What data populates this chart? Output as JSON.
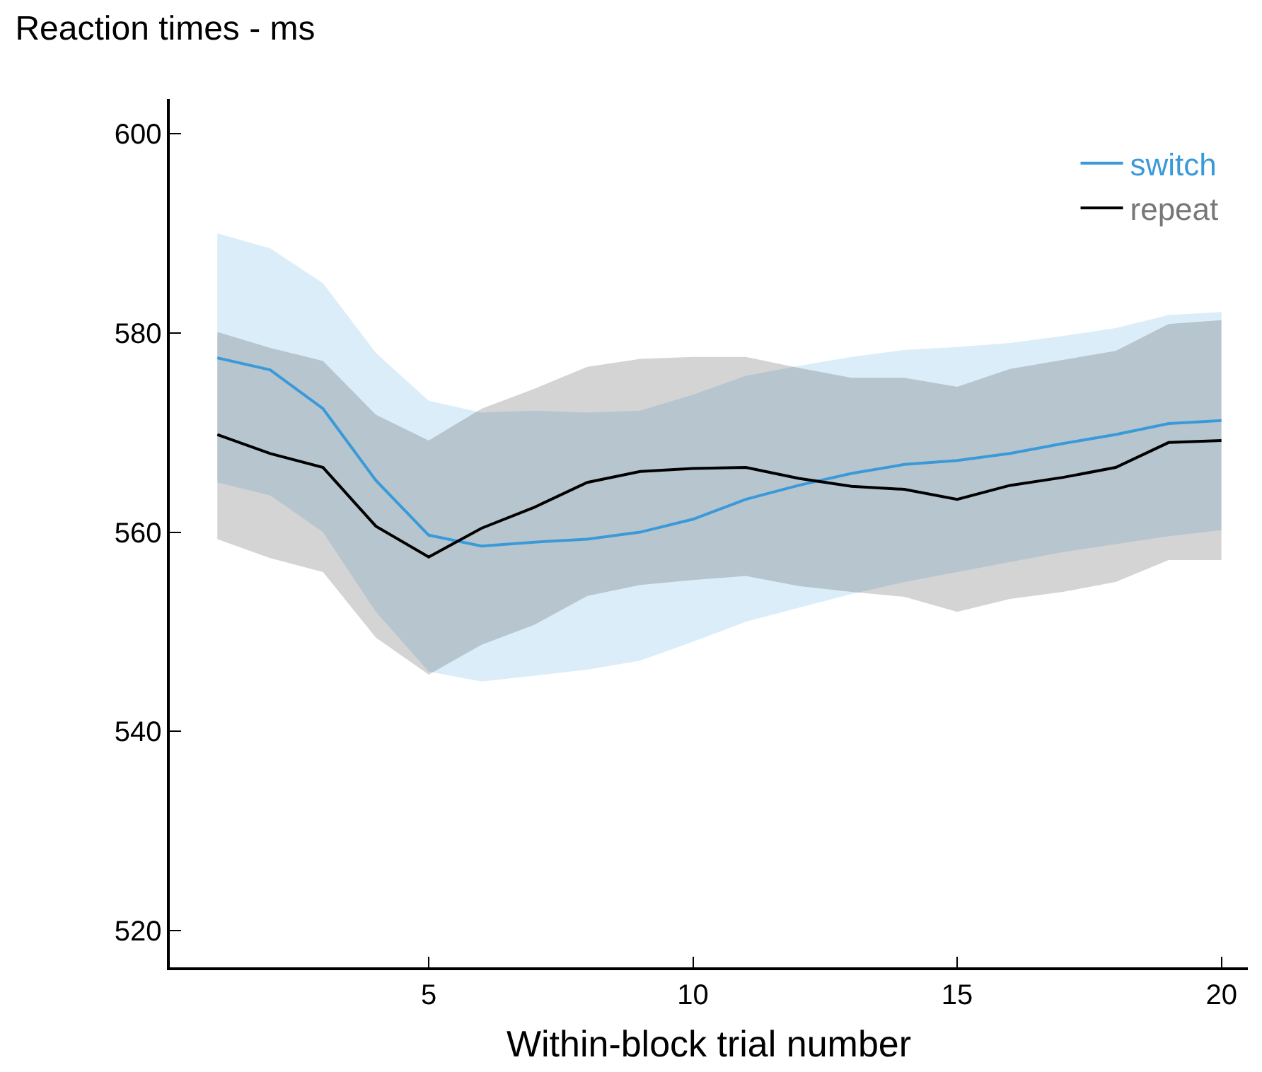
{
  "chart_data": {
    "type": "line",
    "title": "Reaction times - ms",
    "xlabel": "Within-block trial number",
    "x": [
      1,
      2,
      3,
      4,
      5,
      6,
      7,
      8,
      9,
      10,
      11,
      12,
      13,
      14,
      15,
      16,
      17,
      18,
      19,
      20
    ],
    "series": [
      {
        "name": "switch",
        "color": "#3a9ad9",
        "values": [
          577.5,
          576.3,
          572.4,
          565.2,
          559.7,
          558.6,
          559.0,
          559.3,
          560.0,
          561.3,
          563.3,
          564.7,
          565.9,
          566.8,
          567.2,
          567.9,
          568.9,
          569.8,
          570.9,
          571.2
        ],
        "lower": [
          565.0,
          563.7,
          560.0,
          552.0,
          546.0,
          545.0,
          545.6,
          546.2,
          547.1,
          549.0,
          551.0,
          552.4,
          553.8,
          555.0,
          556.0,
          557.0,
          558.0,
          558.8,
          559.6,
          560.2
        ],
        "upper": [
          590.0,
          588.5,
          585.0,
          578.0,
          573.2,
          572.0,
          572.2,
          572.0,
          572.2,
          573.8,
          575.7,
          576.7,
          577.6,
          578.3,
          578.6,
          579.0,
          579.7,
          580.5,
          581.8,
          582.1
        ]
      },
      {
        "name": "repeat",
        "color": "#000000",
        "values": [
          569.8,
          567.9,
          566.5,
          560.6,
          557.5,
          560.4,
          562.5,
          565.0,
          566.1,
          566.4,
          566.5,
          565.4,
          564.6,
          564.3,
          563.3,
          564.7,
          565.5,
          566.5,
          569.0,
          569.2
        ],
        "lower": [
          559.3,
          557.4,
          556.0,
          549.4,
          545.7,
          548.7,
          550.7,
          553.6,
          554.7,
          555.2,
          555.6,
          554.6,
          554.0,
          553.5,
          552.0,
          553.3,
          554.0,
          555.0,
          557.2,
          557.2
        ],
        "upper": [
          580.1,
          578.5,
          577.2,
          571.8,
          569.2,
          572.4,
          574.4,
          576.6,
          577.4,
          577.6,
          577.6,
          576.5,
          575.5,
          575.5,
          574.6,
          576.4,
          577.3,
          578.2,
          580.9,
          581.3
        ]
      }
    ],
    "xlim": [
      0.1,
      20.5
    ],
    "xticks": [
      5,
      10,
      15,
      20
    ],
    "ylim": [
      516.3,
      603.5
    ],
    "yticks": [
      520,
      540,
      560,
      580,
      600
    ],
    "legend": "top right"
  }
}
